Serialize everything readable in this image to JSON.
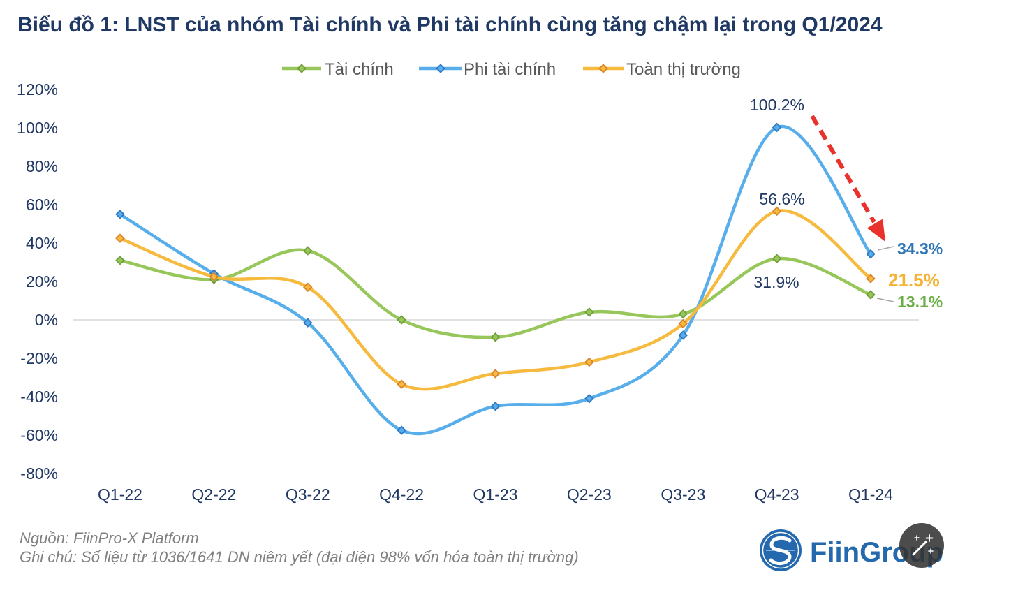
{
  "chart_data": {
    "type": "line",
    "smooth": true,
    "title": "Biểu đồ 1: LNST của nhóm Tài chính và Phi tài chính cùng tăng chậm lại trong Q1/2024",
    "categories": [
      "Q1-22",
      "Q2-22",
      "Q3-22",
      "Q4-22",
      "Q1-23",
      "Q2-23",
      "Q3-23",
      "Q4-23",
      "Q1-24"
    ],
    "series": [
      {
        "name": "Tài chính",
        "color": "#97C65B",
        "marker_color": "#6E9F38",
        "values": [
          31,
          21,
          36,
          0,
          -9,
          4,
          3,
          31.9,
          13.1
        ],
        "labels": [
          null,
          null,
          null,
          null,
          null,
          null,
          null,
          "31.9%",
          "13.1%"
        ]
      },
      {
        "name": "Phi tài chính",
        "color": "#58AEEB",
        "marker_color": "#2F78C2",
        "values": [
          55,
          24,
          -1.5,
          -57.5,
          -45,
          -41,
          -8,
          100.2,
          34.3
        ],
        "labels": [
          null,
          null,
          null,
          null,
          null,
          null,
          null,
          "100.2%",
          "34.3%"
        ]
      },
      {
        "name": "Toàn thị trường",
        "color": "#F6BA3E",
        "marker_color": "#D9822B",
        "values": [
          42.5,
          22.5,
          17,
          -33.5,
          -28,
          -22,
          -2,
          56.6,
          21.5
        ],
        "labels": [
          null,
          null,
          null,
          null,
          null,
          null,
          null,
          "56.6%",
          "21.5%"
        ]
      }
    ],
    "y_ticks": [
      120,
      100,
      80,
      60,
      40,
      20,
      0,
      -20,
      -40,
      -60,
      -80
    ],
    "y_tick_labels": [
      "120%",
      "100%",
      "80%",
      "60%",
      "40%",
      "20%",
      "0%",
      "-20%",
      "-40%",
      "-60%",
      "-80%"
    ],
    "ylim": [
      -80,
      120
    ],
    "grid": false,
    "zero_line": true,
    "legend_position": "top",
    "annotation_arrow": {
      "icon": "dashed-arrow-down-right-icon",
      "color": "#E8322B"
    }
  },
  "footer": {
    "source": "Nguồn: FiinPro-X Platform",
    "note": "Ghi chú: Số liệu từ 1036/1641 DN niêm yết (đại diện 98% vốn hóa toàn thị trường)"
  },
  "logo": {
    "icon": "fiingroup-logo-icon",
    "text": "FiinGroup",
    "color": "#2468AE"
  },
  "overlay_button": {
    "icon": "magic-wand-icon"
  }
}
